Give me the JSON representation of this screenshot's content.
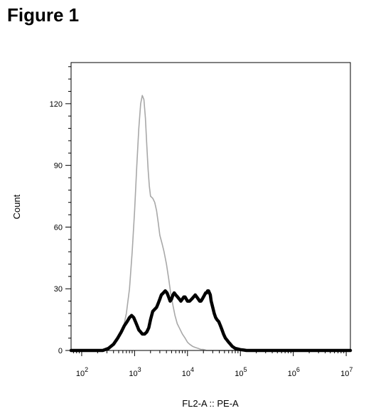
{
  "figure_label": "Figure 1",
  "chart_data": {
    "type": "line",
    "title": "",
    "xlabel": "FL2-A :: PE-A",
    "ylabel": "Count",
    "xscale": "log",
    "xlim": [
      63,
      12000000
    ],
    "ylim": [
      0,
      140
    ],
    "x_ticks": [
      {
        "value": 100,
        "base": "10",
        "exp": "2"
      },
      {
        "value": 1000,
        "base": "10",
        "exp": "3"
      },
      {
        "value": 10000,
        "base": "10",
        "exp": "4"
      },
      {
        "value": 100000,
        "base": "10",
        "exp": "5"
      },
      {
        "value": 1000000,
        "base": "10",
        "exp": "6"
      },
      {
        "value": 10000000,
        "base": "10",
        "exp": "7"
      }
    ],
    "y_ticks": [
      {
        "value": 0,
        "label": "0"
      },
      {
        "value": 30,
        "label": "30"
      },
      {
        "value": 60,
        "label": "60"
      },
      {
        "value": 90,
        "label": "90"
      },
      {
        "value": 120,
        "label": "120"
      }
    ],
    "grid": false,
    "legend": false,
    "series": [
      {
        "color": "#a8a8a8",
        "style": "thin",
        "x": [
          63,
          240,
          300,
          380,
          480,
          600,
          700,
          800,
          900,
          1000,
          1100,
          1200,
          1300,
          1400,
          1500,
          1600,
          1700,
          1800,
          1900,
          2000,
          2200,
          2400,
          2600,
          2800,
          3000,
          3300,
          3600,
          4000,
          4400,
          4800,
          5300,
          5800,
          6400,
          7000,
          8000,
          9000,
          10000,
          11000,
          12500,
          14000,
          16000,
          18000,
          20000,
          23000,
          27000,
          12000000
        ],
        "y": [
          0,
          0,
          1,
          2,
          5,
          10,
          18,
          30,
          48,
          68,
          90,
          108,
          120,
          124,
          122,
          113,
          100,
          88,
          80,
          75,
          74,
          72,
          68,
          62,
          56,
          52,
          48,
          42,
          35,
          28,
          22,
          17,
          13,
          11,
          8,
          6,
          4,
          3,
          2,
          1.5,
          1,
          0.5,
          0.5,
          0,
          0,
          0
        ]
      },
      {
        "color": "#000000",
        "style": "thick",
        "x": [
          63,
          250,
          320,
          400,
          480,
          560,
          640,
          720,
          800,
          880,
          960,
          1040,
          1120,
          1200,
          1300,
          1400,
          1550,
          1700,
          1850,
          2000,
          2200,
          2400,
          2600,
          2800,
          3000,
          3200,
          3500,
          3800,
          4100,
          4400,
          4700,
          5000,
          5300,
          5600,
          6000,
          6500,
          7000,
          7500,
          8000,
          8500,
          9000,
          9500,
          10000,
          11000,
          12000,
          13000,
          14000,
          15000,
          16000,
          17000,
          18000,
          19000,
          20000,
          21000,
          22000,
          23000,
          24000,
          25000,
          26000,
          27000,
          28000,
          30000,
          32000,
          34000,
          36000,
          39000,
          42000,
          45000,
          48000,
          52000,
          56000,
          60000,
          65000,
          70000,
          75000,
          80000,
          90000,
          100000,
          115000,
          130000,
          150000,
          200000,
          12000000
        ],
        "y": [
          0,
          0,
          1,
          3,
          6,
          9,
          12,
          14,
          16,
          17,
          16,
          14,
          12,
          10,
          9,
          8,
          8,
          9,
          11,
          15,
          19,
          20,
          21,
          23,
          25,
          27,
          28,
          29,
          28,
          26,
          24,
          25,
          27,
          28,
          27,
          26,
          25,
          24,
          25,
          26,
          26,
          25,
          24,
          24,
          25,
          26,
          27,
          26,
          25,
          24,
          24,
          25,
          26,
          27,
          28,
          28,
          29,
          29,
          28,
          27,
          24,
          21,
          18,
          16,
          15,
          14,
          12,
          10,
          8,
          6,
          5,
          4,
          3,
          2,
          1.5,
          1,
          0.7,
          0.4,
          0.2,
          0,
          0,
          0,
          0
        ]
      }
    ]
  }
}
